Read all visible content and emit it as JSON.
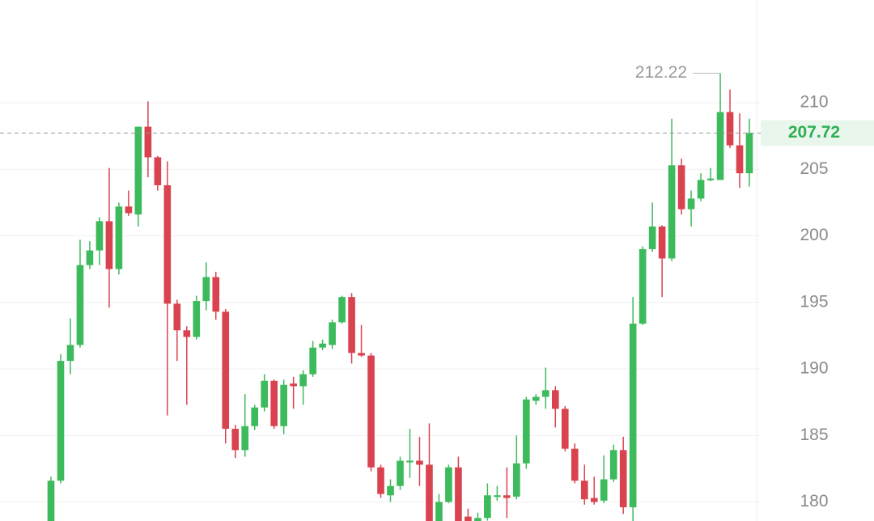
{
  "chart_data": {
    "type": "candlestick",
    "up_color": "#3dba5b",
    "down_color": "#d9434f",
    "ylim": [
      178.57,
      217.72
    ],
    "yticks": [
      180,
      185,
      190,
      195,
      200,
      205,
      210
    ],
    "grid": true,
    "open": [
      178.5,
      181.6,
      190.6,
      191.8,
      197.8,
      198.9,
      201.1,
      197.5,
      202.2,
      201.6,
      208.2,
      205.9,
      203.8,
      194.9,
      192.9,
      192.4,
      195.1,
      196.9,
      194.3,
      185.5,
      183.9,
      185.7,
      187.1,
      189.1,
      185.7,
      188.9,
      188.7,
      189.6,
      191.6,
      191.8,
      193.5,
      195.4,
      191.2,
      191.0,
      182.6,
      180.5,
      181.2,
      183.0,
      183.1,
      182.8,
      178.5,
      180.0,
      182.6,
      178.9,
      178.5,
      178.8,
      180.4,
      180.5,
      180.4,
      182.9,
      187.6,
      187.9,
      188.4,
      187.0,
      184.0,
      181.6,
      180.3,
      180.1,
      181.7,
      183.9,
      179.6,
      193.4,
      199.0,
      200.7,
      198.3,
      205.3,
      202.0,
      202.8,
      204.2,
      204.2,
      209.3,
      206.8,
      204.7
    ],
    "high": [
      181.9,
      191.1,
      193.8,
      199.7,
      199.6,
      201.4,
      205.1,
      202.5,
      203.4,
      208.2,
      210.1,
      206.0,
      205.6,
      195.2,
      193.2,
      195.5,
      198.0,
      197.3,
      194.5,
      185.8,
      188.1,
      187.3,
      189.6,
      189.2,
      189.2,
      189.4,
      189.9,
      192.1,
      192.2,
      193.7,
      195.5,
      195.7,
      193.3,
      191.2,
      182.8,
      181.7,
      183.4,
      185.5,
      184.9,
      185.9,
      180.6,
      182.8,
      183.4,
      179.5,
      179.2,
      181.4,
      181.2,
      182.6,
      185.0,
      187.9,
      188.1,
      190.1,
      188.7,
      187.2,
      184.4,
      182.8,
      181.9,
      183.5,
      184.3,
      184.9,
      195.4,
      199.2,
      202.5,
      200.8,
      208.8,
      205.8,
      203.4,
      204.7,
      205.1,
      212.22,
      211.0,
      209.2,
      208.8
    ],
    "low": [
      178,
      181.4,
      189.6,
      191.6,
      197.5,
      197.8,
      194.6,
      197.1,
      201.5,
      200.7,
      204.4,
      203.4,
      186.5,
      190.6,
      187.3,
      192.2,
      194.4,
      193.7,
      184.4,
      183.3,
      183.4,
      185.4,
      186.8,
      185.5,
      185.1,
      187.0,
      187.3,
      189.4,
      191.4,
      191.5,
      193.4,
      190.4,
      190.9,
      182.3,
      180.3,
      180.0,
      180.9,
      181.8,
      181.2,
      178,
      178,
      179.9,
      178,
      178,
      178,
      178.6,
      180.1,
      178.8,
      180.2,
      182.5,
      187.3,
      187.0,
      185.6,
      183.8,
      181.4,
      179.8,
      179.8,
      179.9,
      181.5,
      179.1,
      178,
      193.3,
      198.8,
      195.4,
      198.1,
      201.6,
      200.7,
      202.6,
      204.1,
      204.2,
      206.6,
      203.6,
      203.7
    ],
    "close": [
      181.6,
      190.6,
      191.8,
      197.8,
      198.9,
      201.1,
      197.5,
      202.2,
      201.7,
      208.2,
      205.9,
      203.8,
      194.9,
      192.9,
      192.4,
      195.1,
      196.9,
      194.3,
      185.5,
      183.9,
      185.7,
      187.1,
      189.1,
      185.7,
      188.8,
      188.7,
      189.6,
      191.6,
      191.9,
      193.5,
      195.4,
      191.2,
      191.0,
      182.6,
      180.6,
      181.2,
      183.1,
      183.1,
      182.8,
      178.5,
      180.0,
      182.6,
      178.5,
      178.5,
      178.8,
      180.5,
      180.5,
      180.3,
      182.9,
      187.7,
      187.9,
      188.4,
      187.0,
      184.0,
      181.6,
      180.2,
      180.0,
      181.7,
      183.9,
      179.6,
      193.4,
      199.0,
      200.7,
      198.3,
      205.3,
      202.0,
      202.8,
      204.2,
      204.3,
      209.3,
      206.8,
      204.7,
      207.72
    ]
  }
}
